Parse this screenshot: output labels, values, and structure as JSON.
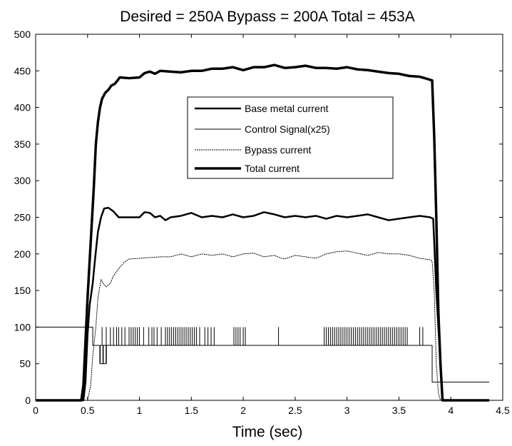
{
  "chart_data": {
    "type": "line",
    "title": "Desired = 250A Bypass = 200A Total = 453A",
    "xlabel": "Time (sec)",
    "ylabel": "",
    "xlim": [
      0,
      4.5
    ],
    "ylim": [
      0,
      500
    ],
    "x_ticks": [
      "0",
      "0.5",
      "1",
      "1.5",
      "2",
      "2.5",
      "3",
      "3.5",
      "4",
      "4.5"
    ],
    "y_ticks": [
      "0",
      "50",
      "100",
      "150",
      "200",
      "250",
      "300",
      "350",
      "400",
      "450",
      "500"
    ],
    "grid": false,
    "legend_position": "upper-center",
    "series": [
      {
        "name": "Base metal current",
        "style": "thick",
        "points": [
          [
            0,
            0
          ],
          [
            0.46,
            0
          ],
          [
            0.48,
            25
          ],
          [
            0.5,
            90
          ],
          [
            0.52,
            130
          ],
          [
            0.55,
            160
          ],
          [
            0.57,
            190
          ],
          [
            0.6,
            230
          ],
          [
            0.63,
            250
          ],
          [
            0.66,
            262
          ],
          [
            0.7,
            263
          ],
          [
            0.75,
            258
          ],
          [
            0.8,
            250
          ],
          [
            0.9,
            250
          ],
          [
            1.0,
            250
          ],
          [
            1.05,
            257
          ],
          [
            1.1,
            256
          ],
          [
            1.15,
            250
          ],
          [
            1.2,
            252
          ],
          [
            1.25,
            246
          ],
          [
            1.3,
            250
          ],
          [
            1.4,
            252
          ],
          [
            1.5,
            256
          ],
          [
            1.6,
            250
          ],
          [
            1.7,
            252
          ],
          [
            1.8,
            250
          ],
          [
            1.9,
            254
          ],
          [
            2.0,
            250
          ],
          [
            2.1,
            252
          ],
          [
            2.2,
            257
          ],
          [
            2.3,
            254
          ],
          [
            2.4,
            250
          ],
          [
            2.5,
            252
          ],
          [
            2.6,
            250
          ],
          [
            2.7,
            252
          ],
          [
            2.8,
            248
          ],
          [
            2.9,
            252
          ],
          [
            3.0,
            250
          ],
          [
            3.1,
            252
          ],
          [
            3.2,
            254
          ],
          [
            3.3,
            250
          ],
          [
            3.4,
            246
          ],
          [
            3.5,
            248
          ],
          [
            3.6,
            250
          ],
          [
            3.7,
            252
          ],
          [
            3.8,
            250
          ],
          [
            3.83,
            248
          ],
          [
            3.86,
            150
          ],
          [
            3.9,
            50
          ],
          [
            3.92,
            0
          ],
          [
            4.37,
            0
          ]
        ]
      },
      {
        "name": "Control Signal(x25)",
        "style": "thin",
        "points": [
          [
            0,
            100
          ],
          [
            0.55,
            100
          ],
          [
            0.55,
            75
          ],
          [
            3.82,
            75
          ],
          [
            3.82,
            25
          ],
          [
            4.37,
            25
          ]
        ],
        "pulse_x": [
          0.64,
          0.68,
          0.72,
          0.75,
          0.78,
          0.8,
          0.83,
          0.86,
          0.9,
          0.92,
          0.94,
          0.96,
          0.98,
          1.0,
          1.04,
          1.09,
          1.12,
          1.14,
          1.17,
          1.21,
          1.25,
          1.27,
          1.29,
          1.31,
          1.33,
          1.35,
          1.37,
          1.39,
          1.41,
          1.43,
          1.45,
          1.47,
          1.49,
          1.51,
          1.53,
          1.55,
          1.58,
          1.63,
          1.66,
          1.69,
          1.72,
          1.91,
          1.93,
          1.95,
          1.97,
          2.0,
          2.02,
          2.34,
          2.78,
          2.8,
          2.82,
          2.84,
          2.86,
          2.88,
          2.9,
          2.92,
          2.94,
          2.96,
          2.98,
          3.0,
          3.02,
          3.04,
          3.06,
          3.08,
          3.1,
          3.12,
          3.14,
          3.16,
          3.18,
          3.2,
          3.22,
          3.24,
          3.26,
          3.28,
          3.3,
          3.32,
          3.34,
          3.36,
          3.38,
          3.4,
          3.42,
          3.44,
          3.46,
          3.48,
          3.5,
          3.52,
          3.54,
          3.56,
          3.58,
          3.7,
          3.73
        ],
        "dip_x": [
          0.62,
          0.65,
          0.68
        ]
      },
      {
        "name": "Bypass current",
        "style": "dotted",
        "points": [
          [
            0,
            0
          ],
          [
            0.5,
            0
          ],
          [
            0.53,
            20
          ],
          [
            0.55,
            60
          ],
          [
            0.58,
            100
          ],
          [
            0.6,
            140
          ],
          [
            0.63,
            165
          ],
          [
            0.65,
            160
          ],
          [
            0.68,
            155
          ],
          [
            0.72,
            160
          ],
          [
            0.75,
            170
          ],
          [
            0.8,
            180
          ],
          [
            0.85,
            188
          ],
          [
            0.9,
            193
          ],
          [
            1.0,
            194
          ],
          [
            1.1,
            195
          ],
          [
            1.2,
            196
          ],
          [
            1.3,
            196
          ],
          [
            1.4,
            200
          ],
          [
            1.5,
            196
          ],
          [
            1.6,
            200
          ],
          [
            1.7,
            198
          ],
          [
            1.8,
            200
          ],
          [
            1.9,
            196
          ],
          [
            2.0,
            200
          ],
          [
            2.1,
            201
          ],
          [
            2.2,
            196
          ],
          [
            2.3,
            198
          ],
          [
            2.35,
            195
          ],
          [
            2.4,
            193
          ],
          [
            2.5,
            198
          ],
          [
            2.6,
            196
          ],
          [
            2.7,
            194
          ],
          [
            2.8,
            200
          ],
          [
            2.9,
            203
          ],
          [
            3.0,
            204
          ],
          [
            3.1,
            201
          ],
          [
            3.2,
            198
          ],
          [
            3.3,
            202
          ],
          [
            3.4,
            200
          ],
          [
            3.5,
            200
          ],
          [
            3.6,
            198
          ],
          [
            3.7,
            194
          ],
          [
            3.8,
            192
          ],
          [
            3.82,
            190
          ],
          [
            3.84,
            150
          ],
          [
            3.86,
            50
          ],
          [
            3.88,
            10
          ],
          [
            3.9,
            0
          ],
          [
            4.37,
            0
          ]
        ]
      },
      {
        "name": "Total current",
        "style": "thicker",
        "points": [
          [
            0,
            0
          ],
          [
            0.44,
            0
          ],
          [
            0.46,
            20
          ],
          [
            0.48,
            80
          ],
          [
            0.5,
            140
          ],
          [
            0.52,
            190
          ],
          [
            0.54,
            240
          ],
          [
            0.56,
            290
          ],
          [
            0.58,
            350
          ],
          [
            0.6,
            380
          ],
          [
            0.62,
            400
          ],
          [
            0.64,
            412
          ],
          [
            0.67,
            420
          ],
          [
            0.7,
            424
          ],
          [
            0.73,
            430
          ],
          [
            0.76,
            432
          ],
          [
            0.79,
            437
          ],
          [
            0.81,
            441
          ],
          [
            0.9,
            440
          ],
          [
            1.0,
            441
          ],
          [
            1.05,
            447
          ],
          [
            1.1,
            449
          ],
          [
            1.15,
            446
          ],
          [
            1.2,
            450
          ],
          [
            1.3,
            449
          ],
          [
            1.4,
            448
          ],
          [
            1.5,
            450
          ],
          [
            1.6,
            450
          ],
          [
            1.7,
            453
          ],
          [
            1.8,
            453
          ],
          [
            1.9,
            455
          ],
          [
            2.0,
            451
          ],
          [
            2.1,
            455
          ],
          [
            2.2,
            455
          ],
          [
            2.3,
            458
          ],
          [
            2.4,
            454
          ],
          [
            2.5,
            455
          ],
          [
            2.6,
            457
          ],
          [
            2.7,
            454
          ],
          [
            2.8,
            454
          ],
          [
            2.9,
            453
          ],
          [
            3.0,
            455
          ],
          [
            3.1,
            452
          ],
          [
            3.2,
            451
          ],
          [
            3.3,
            449
          ],
          [
            3.4,
            447
          ],
          [
            3.5,
            446
          ],
          [
            3.6,
            443
          ],
          [
            3.7,
            442
          ],
          [
            3.75,
            440
          ],
          [
            3.82,
            437
          ],
          [
            3.84,
            360
          ],
          [
            3.86,
            250
          ],
          [
            3.88,
            120
          ],
          [
            3.9,
            50
          ],
          [
            3.92,
            0
          ],
          [
            4.37,
            0
          ]
        ]
      }
    ]
  }
}
